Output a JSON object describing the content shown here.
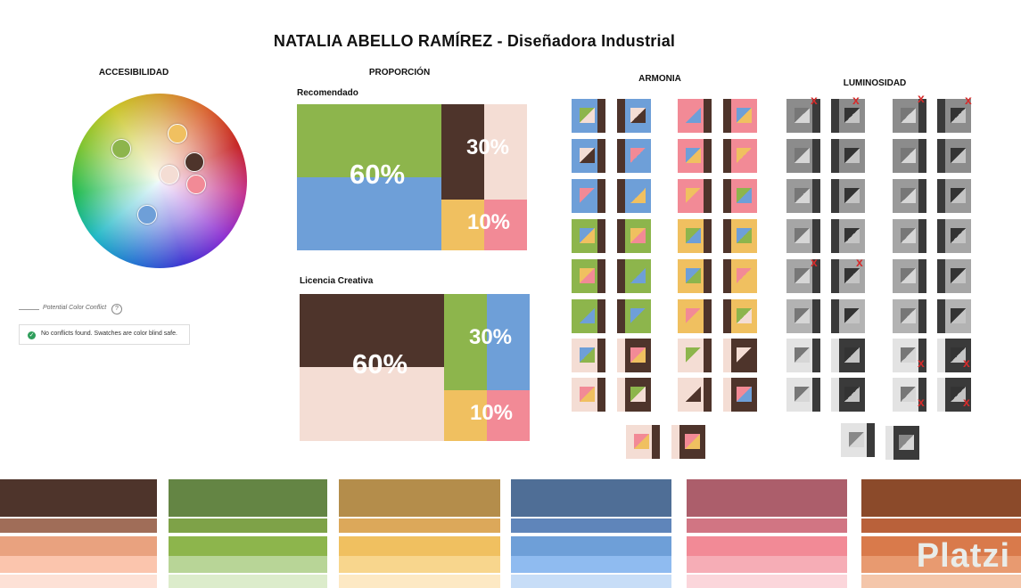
{
  "header": {
    "title": "NATALIA ABELLO RAMÍREZ - Diseñadora Industrial"
  },
  "accesibilidad": {
    "heading": "ACCESIBILIDAD",
    "legend_label": "Potential Color Conflict",
    "help_glyph": "?",
    "status_message": "No conflicts found. Swatches are color blind safe.",
    "check_glyph": "✓",
    "picked_colors": [
      "#8db54c",
      "#f0c060",
      "#4e342b",
      "#f4ddd4",
      "#f28a96",
      "#6e9fd8"
    ]
  },
  "proporcion": {
    "heading": "PROPORCIÓN",
    "recomendado": {
      "label": "Recomendado",
      "p60": "60%",
      "p30": "30%",
      "p10": "10%"
    },
    "licencia": {
      "label": "Licencia Creativa",
      "p60": "60%",
      "p30": "30%",
      "p10": "10%"
    }
  },
  "armonia": {
    "heading": "ARMONIA"
  },
  "luminosidad": {
    "heading": "LUMINOSIDAD",
    "x_mark": "x"
  },
  "palette": {
    "brown": "#4e342b",
    "green": "#8db54c",
    "blue": "#6e9fd8",
    "yellow": "#f0c060",
    "pink": "#f28a96",
    "cream": "#f4ddd4"
  },
  "watermark": "Platzi"
}
